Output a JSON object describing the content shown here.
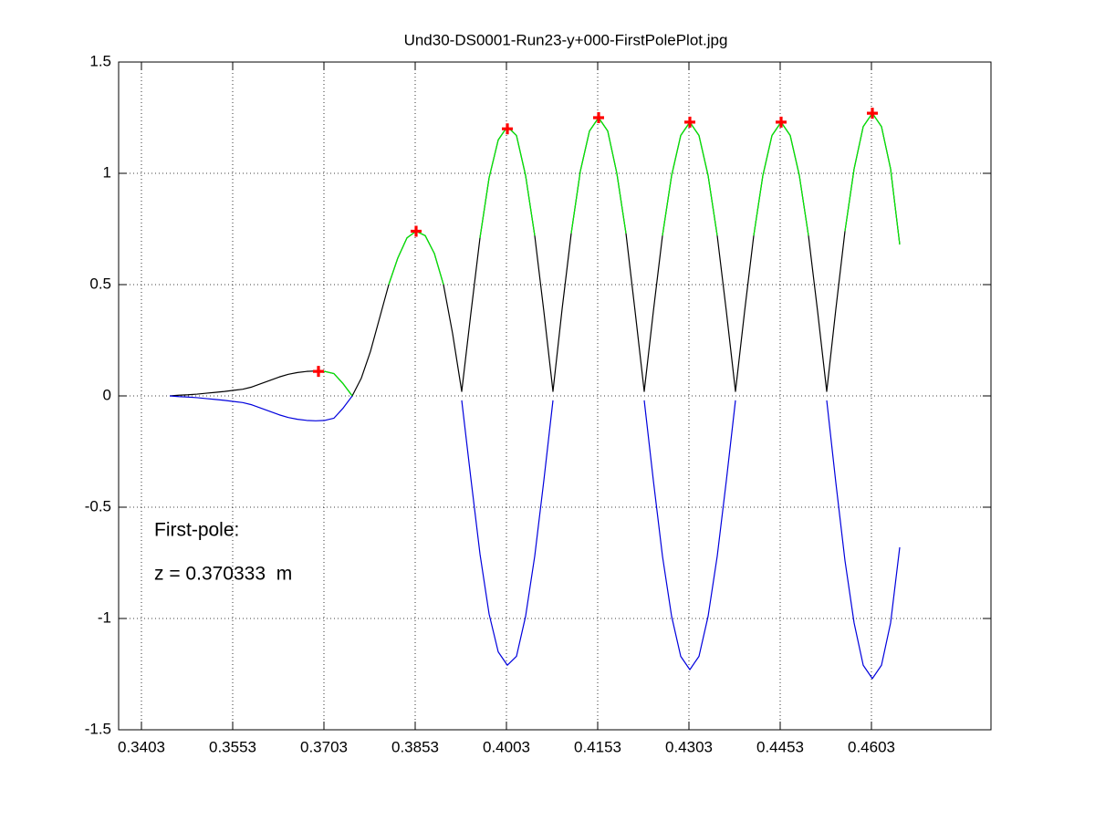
{
  "chart_data": {
    "type": "line",
    "title": "Und30-DS0001-Run23-y+000-FirstPolePlot.jpg",
    "annotations": [
      "First-pole:",
      "z = 0.370333  m"
    ],
    "xlim": [
      0.33655,
      0.47995
    ],
    "xticks": [
      0.3403,
      0.3553,
      0.3703,
      0.3853,
      0.4003,
      0.4153,
      0.4303,
      0.4453,
      0.4603
    ],
    "ylim": [
      -1.5,
      1.5
    ],
    "yticks": [
      -1.5,
      -1,
      -0.5,
      0,
      0.5,
      1,
      1.5
    ],
    "grid": true,
    "x": [
      0.34495,
      0.34645,
      0.34795,
      0.34945,
      0.35095,
      0.35245,
      0.35395,
      0.35545,
      0.35695,
      0.35845,
      0.35995,
      0.36145,
      0.36295,
      0.36445,
      0.36595,
      0.36745,
      0.36895,
      0.37045,
      0.37195,
      0.37345,
      0.37495,
      0.37645,
      0.37795,
      0.37945,
      0.38095,
      0.38245,
      0.38395,
      0.38545,
      0.38695,
      0.38845,
      0.38995,
      0.39145,
      0.39295,
      0.39445,
      0.39595,
      0.39745,
      0.39895,
      0.40045,
      0.40195,
      0.40345,
      0.40495,
      0.40645,
      0.40795,
      0.40945,
      0.41095,
      0.41245,
      0.41395,
      0.41545,
      0.41695,
      0.41845,
      0.41995,
      0.42145,
      0.42295,
      0.42445,
      0.42595,
      0.42745,
      0.42895,
      0.43045,
      0.43195,
      0.43345,
      0.43495,
      0.43645,
      0.43795,
      0.43945,
      0.44095,
      0.44245,
      0.44395,
      0.44545,
      0.44695,
      0.44845,
      0.44995,
      0.45145,
      0.45295,
      0.45445,
      0.45595,
      0.45745,
      0.45895,
      0.46045,
      0.46195,
      0.46345,
      0.46495
    ],
    "series": [
      {
        "color": "#000000",
        "values": [
          0,
          0.003,
          0.005,
          0.008,
          0.012,
          0.016,
          0.02,
          0.025,
          0.03,
          0.04,
          0.055,
          0.07,
          0.085,
          0.097,
          0.105,
          0.11,
          0.112,
          0.11,
          0.1,
          0.055,
          0,
          0.08,
          0.2,
          0.35,
          0.5,
          0.62,
          0.71,
          0.74,
          0.72,
          0.64,
          0.5,
          0.28,
          0.02,
          0.37,
          0.71,
          0.98,
          1.15,
          1.21,
          1.17,
          0.99,
          0.72,
          0.38,
          0.02,
          0.39,
          0.73,
          1.01,
          1.19,
          1.25,
          1.19,
          1.0,
          0.73,
          0.38,
          0.02,
          0.38,
          0.72,
          0.99,
          1.17,
          1.23,
          1.17,
          0.99,
          0.72,
          0.38,
          0.02,
          0.38,
          0.72,
          0.99,
          1.17,
          1.23,
          1.17,
          0.99,
          0.72,
          0.38,
          0.02,
          0.39,
          0.74,
          1.02,
          1.21,
          1.27,
          1.21,
          1.02,
          0.68
        ]
      },
      {
        "color": "#00ee00",
        "values": [
          null,
          null,
          null,
          null,
          null,
          null,
          null,
          null,
          null,
          null,
          null,
          null,
          null,
          null,
          null,
          null,
          0.112,
          0.11,
          0.1,
          0.055,
          0,
          null,
          null,
          null,
          0.5,
          0.62,
          0.71,
          0.74,
          0.72,
          0.64,
          0.5,
          null,
          null,
          null,
          0.71,
          0.98,
          1.15,
          1.21,
          1.17,
          0.99,
          0.72,
          null,
          null,
          null,
          0.73,
          1.01,
          1.19,
          1.25,
          1.19,
          1.0,
          0.73,
          null,
          null,
          null,
          0.72,
          0.99,
          1.17,
          1.23,
          1.17,
          0.99,
          0.72,
          null,
          null,
          null,
          0.72,
          0.99,
          1.17,
          1.23,
          1.17,
          0.99,
          0.72,
          null,
          null,
          null,
          0.74,
          1.02,
          1.21,
          1.27,
          1.21,
          1.02,
          0.68
        ]
      },
      {
        "color": "#0000dd",
        "values": [
          0,
          -0.003,
          -0.005,
          -0.008,
          -0.012,
          -0.016,
          -0.02,
          -0.025,
          -0.03,
          -0.04,
          -0.055,
          -0.07,
          -0.085,
          -0.097,
          -0.105,
          -0.11,
          -0.112,
          -0.11,
          -0.1,
          -0.055,
          0,
          null,
          null,
          null,
          null,
          null,
          null,
          null,
          null,
          null,
          null,
          null,
          -0.02,
          -0.37,
          -0.71,
          -0.98,
          -1.15,
          -1.21,
          -1.17,
          -0.99,
          -0.72,
          -0.38,
          -0.02,
          null,
          null,
          null,
          null,
          null,
          null,
          null,
          null,
          null,
          -0.02,
          -0.38,
          -0.72,
          -0.99,
          -1.17,
          -1.23,
          -1.17,
          -0.99,
          -0.72,
          -0.38,
          -0.02,
          null,
          null,
          null,
          null,
          null,
          null,
          null,
          null,
          null,
          -0.02,
          -0.39,
          -0.74,
          -1.02,
          -1.21,
          -1.27,
          -1.21,
          -1.02,
          -0.68
        ]
      }
    ],
    "markers": {
      "color": "#ff0000",
      "x": [
        0.3694,
        0.38545,
        0.40045,
        0.41545,
        0.43045,
        0.44545,
        0.46045
      ],
      "values": [
        0.11,
        0.74,
        1.2,
        1.25,
        1.23,
        1.23,
        1.27
      ]
    }
  }
}
